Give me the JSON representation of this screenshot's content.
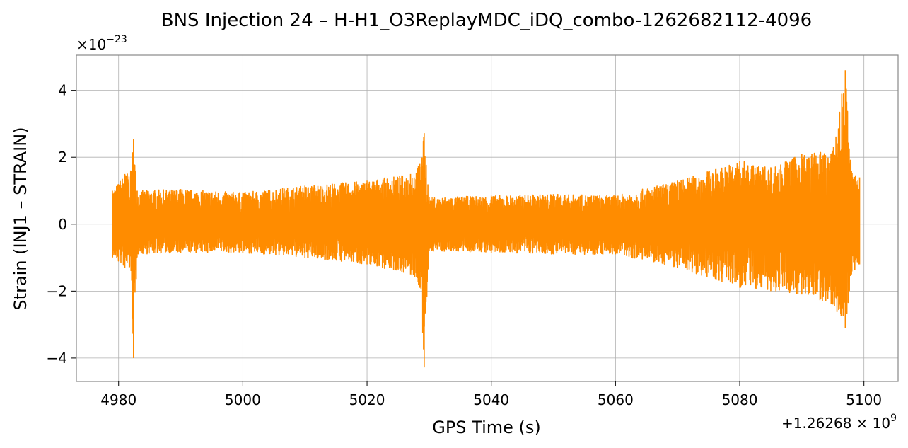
{
  "chart_data": {
    "type": "line",
    "title": "BNS Injection 24 – H-H1_O3ReplayMDC_iDQ_combo-1262682112-4096",
    "xlabel": "GPS Time (s)",
    "ylabel": "Strain (INJ1 – STRAIN)",
    "x_offset_label": "+1.26268",
    "x_offset_exp_base": "× 10",
    "x_offset_exp": "9",
    "y_multiplier_base": "×10",
    "y_multiplier_exp": "−23",
    "xlim": [
      4973.2,
      5105.5
    ],
    "ylim": [
      -4.7,
      5.05
    ],
    "xticks": [
      4980,
      5000,
      5020,
      5040,
      5060,
      5080,
      5100
    ],
    "xtick_labels": [
      "4980",
      "5000",
      "5020",
      "5040",
      "5060",
      "5080",
      "5100"
    ],
    "yticks": [
      -4,
      -2,
      0,
      2,
      4
    ],
    "ytick_labels": [
      "−4",
      "−2",
      "0",
      "2",
      "4"
    ],
    "grid": true,
    "series_color": "#ff8c00",
    "series": [
      {
        "x_range": [
          4979.0,
          5099.3
        ],
        "envelope_points": [
          {
            "x": 4979.0,
            "upper": 1.0,
            "lower": -1.0
          },
          {
            "x": 4981.0,
            "upper": 1.5,
            "lower": -1.3
          },
          {
            "x": 4982.0,
            "upper": 1.6,
            "lower": -1.4
          },
          {
            "x": 4982.4,
            "upper": 2.55,
            "lower": -4.0
          },
          {
            "x": 4983.0,
            "upper": 1.0,
            "lower": -0.9
          },
          {
            "x": 4990.0,
            "upper": 1.05,
            "lower": -0.85
          },
          {
            "x": 5000.0,
            "upper": 0.95,
            "lower": -0.85
          },
          {
            "x": 5010.0,
            "upper": 1.15,
            "lower": -1.0
          },
          {
            "x": 5020.0,
            "upper": 1.3,
            "lower": -1.2
          },
          {
            "x": 5027.0,
            "upper": 1.5,
            "lower": -1.5
          },
          {
            "x": 5028.5,
            "upper": 1.8,
            "lower": -1.9
          },
          {
            "x": 5029.2,
            "upper": 2.72,
            "lower": -4.28
          },
          {
            "x": 5030.0,
            "upper": 0.8,
            "lower": -0.8
          },
          {
            "x": 5040.0,
            "upper": 0.85,
            "lower": -0.85
          },
          {
            "x": 5050.0,
            "upper": 0.9,
            "lower": -0.9
          },
          {
            "x": 5060.0,
            "upper": 0.85,
            "lower": -0.9
          },
          {
            "x": 5070.0,
            "upper": 1.3,
            "lower": -1.3
          },
          {
            "x": 5080.0,
            "upper": 1.9,
            "lower": -1.9
          },
          {
            "x": 5085.0,
            "upper": 1.7,
            "lower": -2.0
          },
          {
            "x": 5090.0,
            "upper": 2.1,
            "lower": -2.1
          },
          {
            "x": 5095.0,
            "upper": 2.2,
            "lower": -2.4
          },
          {
            "x": 5097.0,
            "upper": 4.6,
            "lower": -3.1
          },
          {
            "x": 5098.0,
            "upper": 1.6,
            "lower": -1.5
          },
          {
            "x": 5099.3,
            "upper": 1.4,
            "lower": -1.2
          }
        ]
      }
    ]
  }
}
